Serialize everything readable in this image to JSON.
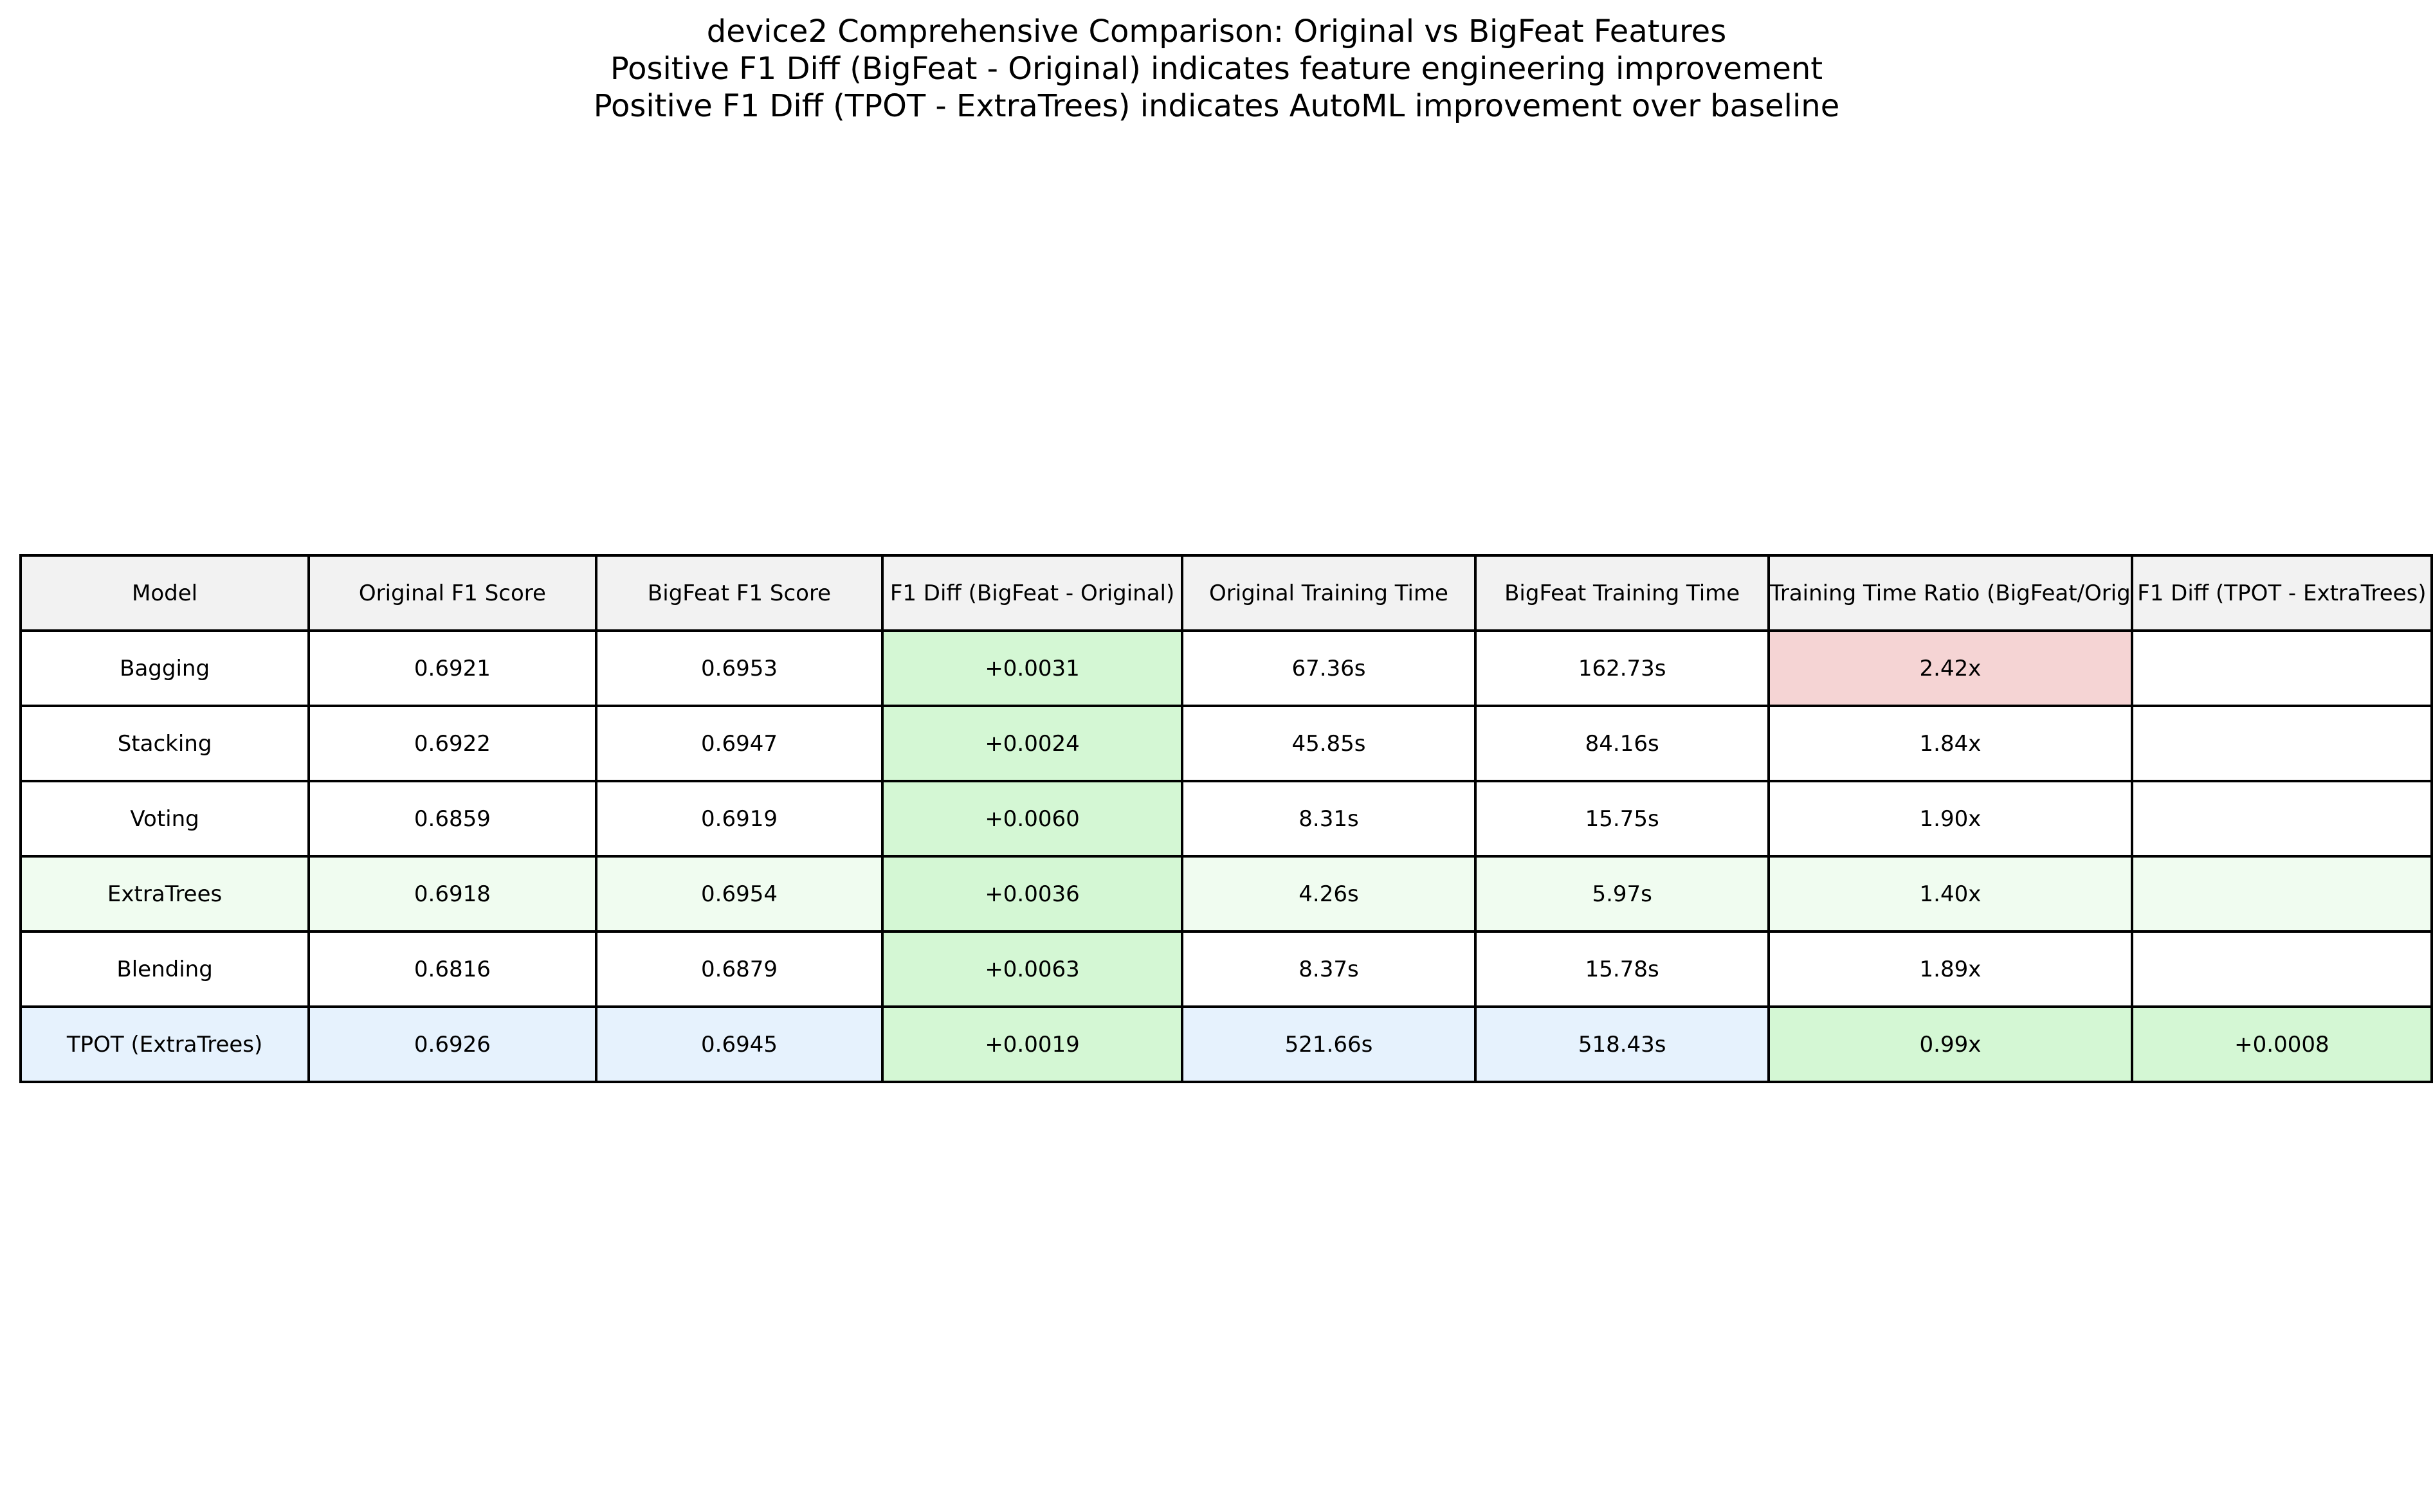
{
  "chart_data": {
    "type": "table",
    "title": "device2 Comprehensive Comparison: Original vs BigFeat Features",
    "subtitle_lines": [
      "Positive F1 Diff (BigFeat - Original) indicates feature engineering improvement",
      "Positive F1 Diff (TPOT - ExtraTrees) indicates AutoML improvement over baseline"
    ],
    "columns": [
      "Model",
      "Original F1 Score",
      "BigFeat F1 Score",
      "F1 Diff (BigFeat - Original)",
      "Original Training Time",
      "BigFeat Training Time",
      "Training Time Ratio (BigFeat/Original)",
      "F1 Diff (TPOT - ExtraTrees)"
    ],
    "column_header_visible": [
      "Model",
      "Original F1 Score",
      "BigFeat F1 Score",
      "F1 Diff (BigFeat - Original)",
      "Original Training Time",
      "BigFeat Training Time",
      "Training Time Ratio (BigFeat/Orig",
      "F1 Diff (TPOT - ExtraTrees)"
    ],
    "rows": [
      [
        "Bagging",
        "0.6921",
        "0.6953",
        "+0.0031",
        "67.36s",
        "162.73s",
        "2.42x",
        ""
      ],
      [
        "Stacking",
        "0.6922",
        "0.6947",
        "+0.0024",
        "45.85s",
        "84.16s",
        "1.84x",
        ""
      ],
      [
        "Voting",
        "0.6859",
        "0.6919",
        "+0.0060",
        "8.31s",
        "15.75s",
        "1.90x",
        ""
      ],
      [
        "ExtraTrees",
        "0.6918",
        "0.6954",
        "+0.0036",
        "4.26s",
        "5.97s",
        "1.40x",
        ""
      ],
      [
        "Blending",
        "0.6816",
        "0.6879",
        "+0.0063",
        "8.37s",
        "15.78s",
        "1.89x",
        ""
      ],
      [
        "TPOT (ExtraTrees)",
        "0.6926",
        "0.6945",
        "+0.0019",
        "521.66s",
        "518.43s",
        "0.99x",
        "+0.0008"
      ]
    ],
    "cell_highlights": {
      "green": "#d4f7d4",
      "red": "#f5d4d4",
      "header": "#f2f2f2",
      "extratrees_row": "#f0fcf0",
      "tpot_row": "#e6f2fd"
    }
  }
}
